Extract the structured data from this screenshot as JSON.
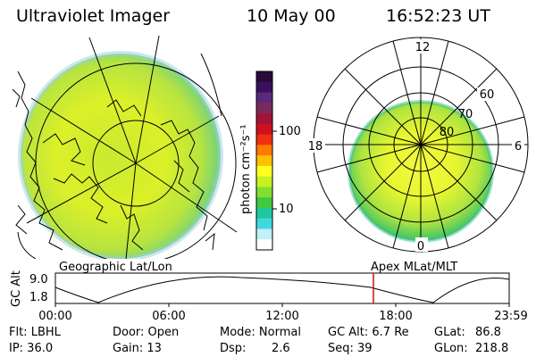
{
  "header": {
    "instrument": "Ultraviolet Imager",
    "date": "10 May 00",
    "time": "16:52:23 UT"
  },
  "colorbar": {
    "unit_label": "photon cm⁻²s⁻¹",
    "tick_labels": [
      "100",
      "10"
    ],
    "colors": [
      "#2a0a3a",
      "#3b0f5c",
      "#5a2a7a",
      "#7a2a5a",
      "#a0143a",
      "#d01020",
      "#f03010",
      "#ff7a00",
      "#ffc000",
      "#ffff20",
      "#c8f020",
      "#80e030",
      "#40c840",
      "#20c8a0",
      "#40d8e0",
      "#c0f0f8",
      "#ffffff"
    ]
  },
  "left_panel": {
    "caption": "Geographic Lat/Lon"
  },
  "right_panel": {
    "caption": "Apex MLat/MLT",
    "mlt_labels": {
      "top": "12",
      "left": "18",
      "right": "6",
      "bottom": "0"
    },
    "lat_labels": [
      "60",
      "70",
      "80"
    ]
  },
  "orbit_plot": {
    "ylabel": "GC Alt",
    "yticks": [
      "9.0",
      "1.8"
    ],
    "xticks": [
      "00:00",
      "06:00",
      "12:00",
      "18:00",
      "23:59"
    ],
    "marker_color": "#d01010"
  },
  "status": {
    "filter": "Flt: LBHL",
    "ip": "IP: 36.0",
    "door": "Door: Open",
    "gain": "Gain: 13",
    "mode": "Mode: Normal",
    "dsp_label": "Dsp:",
    "dsp_value": "2.6",
    "gc_alt": "GC Alt: 6.7 Re",
    "seq": "Seq: 39",
    "glat_label": "GLat:",
    "glat_value": "86.8",
    "glon_label": "GLon:",
    "glon_value": "218.8"
  }
}
